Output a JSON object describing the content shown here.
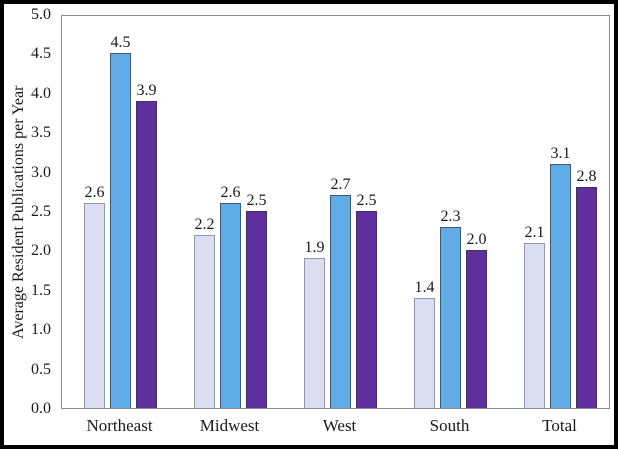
{
  "chart_data": {
    "type": "bar",
    "title": "",
    "xlabel": "",
    "ylabel": "Average Resident Publications per Year",
    "categories": [
      "Northeast",
      "Midwest",
      "West",
      "South",
      "Total"
    ],
    "series": [
      {
        "name": "lavender",
        "fill": "#DADEF0",
        "border": "#9097AE",
        "values": [
          2.6,
          2.2,
          1.9,
          1.4,
          2.1
        ]
      },
      {
        "name": "blue",
        "fill": "#5FACE6",
        "border": "#3E5A78",
        "values": [
          4.5,
          2.6,
          2.7,
          2.3,
          3.1
        ]
      },
      {
        "name": "purple",
        "fill": "#5F2F9E",
        "border": "#433061",
        "values": [
          3.9,
          2.5,
          2.5,
          2.0,
          2.8
        ]
      }
    ],
    "ylim": [
      0,
      5
    ],
    "ytick_labels": [
      "5.0",
      "4.5",
      "4.0",
      "3.5",
      "3.0",
      "2.5",
      "2.0",
      "1.5",
      "1.0",
      "0.5",
      "0.0"
    ],
    "grid": false,
    "legend": "none",
    "bar_value_labels": true,
    "value_label_decimals": 1
  },
  "frame": {
    "outer_border_color": "#000000",
    "plot_border_color": "#8a8a8a",
    "background": "#ffffff",
    "text_color": "#1a1a1a"
  }
}
